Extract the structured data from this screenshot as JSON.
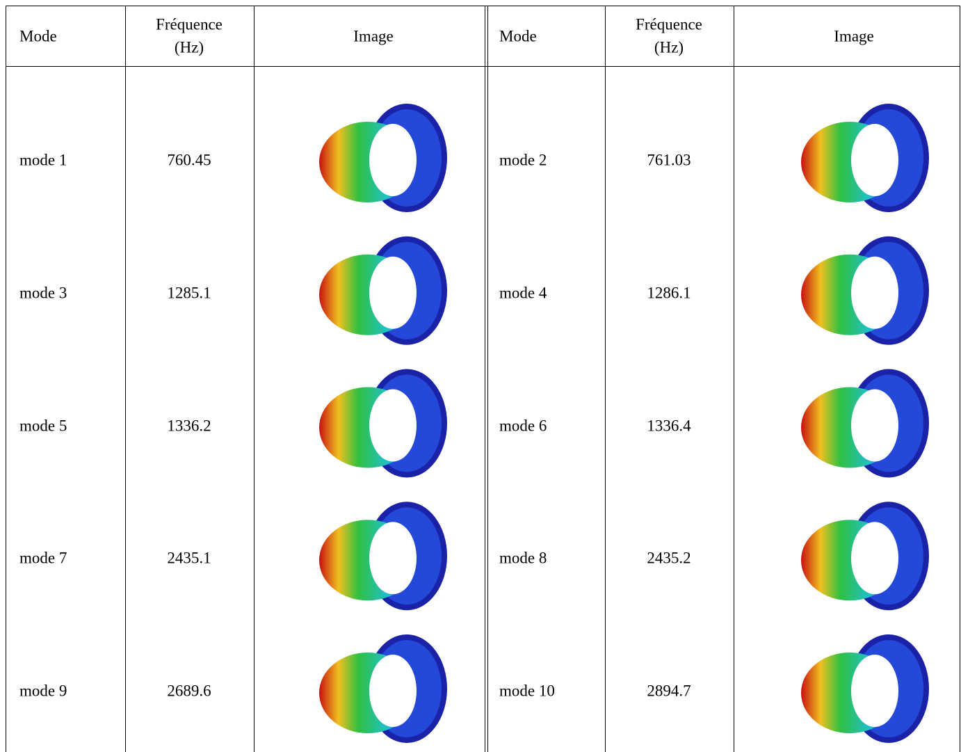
{
  "header": [
    "Mode",
    "Fréquence (Hz)",
    "Image",
    "Mode",
    "Fréquence (Hz)",
    "Image"
  ],
  "rows": [
    [
      "mode 1",
      "760.45",
      "mode 2",
      "761.03"
    ],
    [
      "mode 3",
      "1285.1",
      "mode 4",
      "1286.1"
    ],
    [
      "mode 5",
      "1336.2",
      "mode 6",
      "1336.4"
    ],
    [
      "mode 7",
      "2435.1",
      "mode 8",
      "2435.2"
    ],
    [
      "mode 9",
      "2689.6",
      "mode 10",
      "2894.7"
    ]
  ]
}
